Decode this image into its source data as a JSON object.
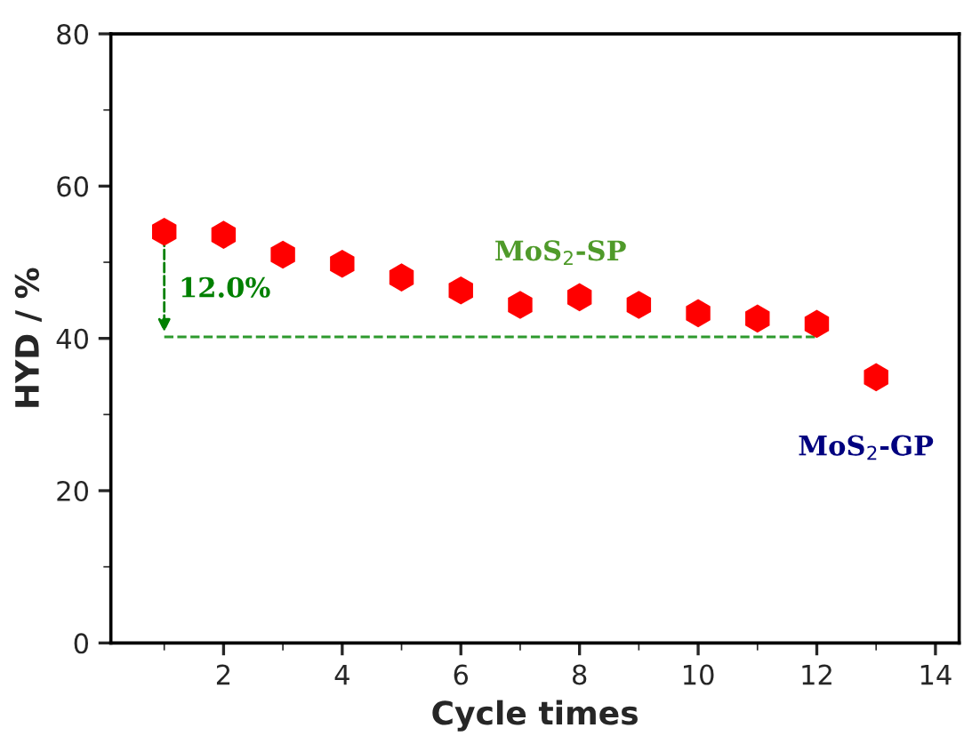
{
  "chart_data": {
    "type": "scatter",
    "xlabel": "Cycle times",
    "ylabel": "HYD / %",
    "x": [
      1,
      2,
      3,
      4,
      5,
      6,
      7,
      8,
      9,
      10,
      11,
      12,
      13
    ],
    "series": [
      {
        "color": "#ff0000",
        "values": [
          54.0,
          53.6,
          51.0,
          49.8,
          48.0,
          46.3,
          44.4,
          45.4,
          44.4,
          43.3,
          42.6,
          41.9,
          34.9
        ]
      },
      {
        "type": "line",
        "color": "#2e9a2e",
        "line_style": "dashed",
        "x": [
          1,
          12
        ],
        "values": [
          40.2,
          40.2
        ]
      }
    ],
    "annotations": [
      "12.0%",
      "MoS$_{2}$-SP",
      "MoS$_{2}$-GP"
    ],
    "xlim": [
      0.1,
      14.4
    ],
    "ylim": [
      0,
      80
    ],
    "xticks": [
      2,
      4,
      6,
      8,
      10,
      12,
      14
    ],
    "yticks": [
      0,
      20,
      40,
      60,
      80
    ],
    "grid": false,
    "legend": false
  }
}
